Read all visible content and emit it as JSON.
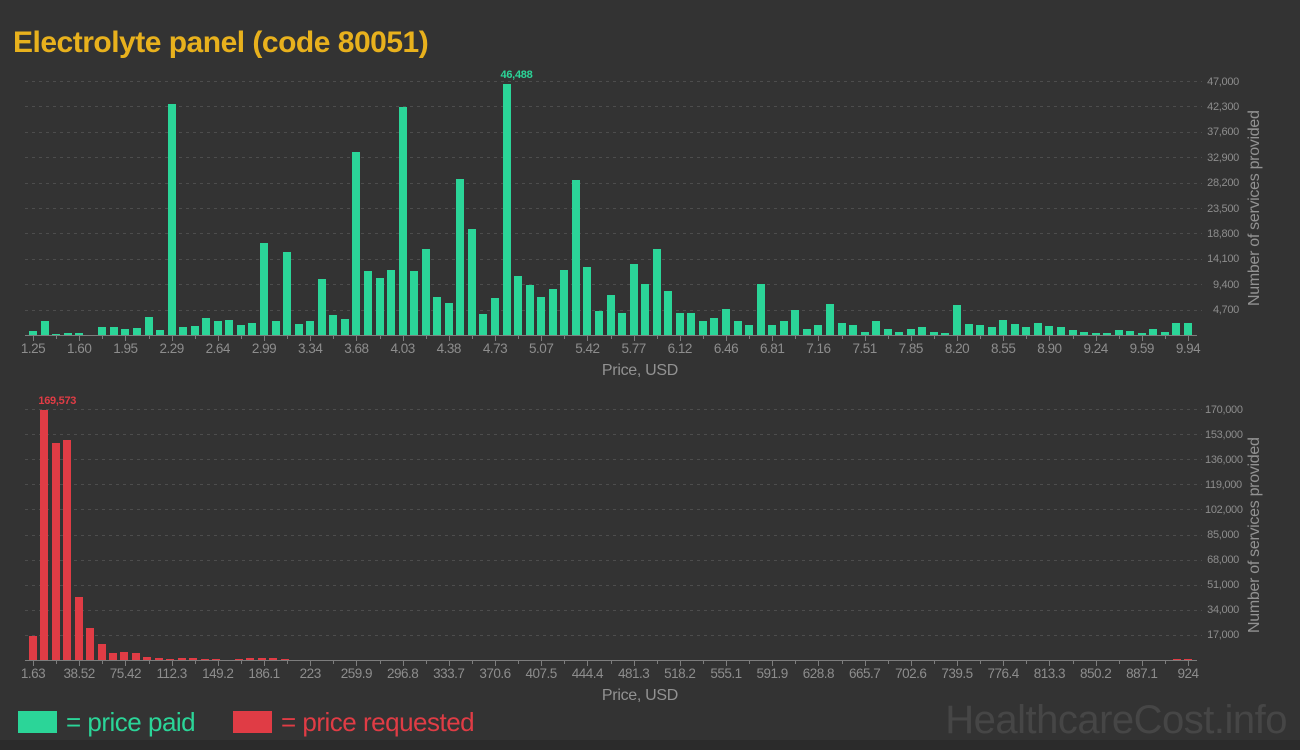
{
  "page": {
    "title": "Electrolyte panel (code 80051)",
    "watermark": "HealthcareCost.info",
    "background_color": "#333333",
    "title_color": "#e8b11d"
  },
  "legend": {
    "items": [
      {
        "label": "= price paid",
        "color": "#2bd598"
      },
      {
        "label": "= price requested",
        "color": "#e03c45"
      }
    ]
  },
  "chart_data": [
    {
      "type": "bar",
      "name": "price paid histogram",
      "color": "#2bd598",
      "xlabel": "Price, USD",
      "ylabel": "Number of services provided",
      "ylim": [
        0,
        47000
      ],
      "grid": true,
      "legend_position": "bottom-left",
      "y_tick_labels": [
        "4,700",
        "9,400",
        "14,100",
        "18,800",
        "23,500",
        "28,200",
        "32,900",
        "37,600",
        "42,300",
        "47,000"
      ],
      "x_tick_labels": [
        "1.25",
        "1.60",
        "1.95",
        "2.29",
        "2.64",
        "2.99",
        "3.34",
        "3.68",
        "4.03",
        "4.38",
        "4.73",
        "5.07",
        "5.42",
        "5.77",
        "6.12",
        "6.46",
        "6.81",
        "7.16",
        "7.51",
        "7.85",
        "8.20",
        "8.55",
        "8.90",
        "9.24",
        "9.59",
        "9.94"
      ],
      "peak_label": "46,488",
      "values": [
        700,
        2500,
        150,
        300,
        300,
        0,
        1500,
        1500,
        1200,
        1300,
        3400,
        900,
        42800,
        1500,
        1600,
        3100,
        2500,
        2800,
        1900,
        2200,
        17100,
        2500,
        15400,
        2000,
        2500,
        10300,
        3700,
        2900,
        33900,
        11800,
        10500,
        12100,
        42100,
        11800,
        16000,
        7000,
        6000,
        28900,
        19600,
        3900,
        6800,
        46488,
        10900,
        9200,
        7100,
        8600,
        12100,
        28700,
        12500,
        4400,
        7400,
        4000,
        13100,
        9400,
        16000,
        8200,
        4000,
        4000,
        2600,
        3100,
        4900,
        2500,
        1800,
        9500,
        1800,
        2500,
        4600,
        1200,
        1800,
        5700,
        2200,
        1800,
        600,
        2500,
        1200,
        600,
        1200,
        1500,
        600,
        400,
        5500,
        2000,
        1800,
        1500,
        2700,
        2000,
        1400,
        2300,
        1700,
        1500,
        900,
        600,
        400,
        300,
        900,
        700,
        400,
        1200,
        600,
        2300,
        2300
      ]
    },
    {
      "type": "bar",
      "name": "price requested histogram",
      "color": "#e03c45",
      "xlabel": "Price, USD",
      "ylabel": "Number of services provided",
      "ylim": [
        0,
        170000
      ],
      "grid": true,
      "legend_position": "bottom-left",
      "y_tick_labels": [
        "17,000",
        "34,000",
        "51,000",
        "68,000",
        "85,000",
        "102,000",
        "119,000",
        "136,000",
        "153,000",
        "170,000"
      ],
      "x_tick_labels": [
        "1.63",
        "38.52",
        "75.42",
        "112.3",
        "149.2",
        "186.1",
        "223",
        "259.9",
        "296.8",
        "333.7",
        "370.6",
        "407.5",
        "444.4",
        "481.3",
        "518.2",
        "555.1",
        "591.9",
        "628.8",
        "665.7",
        "702.6",
        "739.5",
        "776.4",
        "813.3",
        "850.2",
        "887.1",
        "924"
      ],
      "peak_label": "169,573",
      "values": [
        16500,
        169573,
        147000,
        149000,
        43000,
        22000,
        10800,
        4500,
        5600,
        4500,
        1800,
        1100,
        700,
        1500,
        1500,
        400,
        200,
        150,
        300,
        1300,
        1400,
        1300,
        200,
        100,
        100,
        80,
        0,
        0,
        60,
        0,
        0,
        0,
        50,
        0,
        0,
        0,
        0,
        40,
        0,
        0,
        0,
        0,
        0,
        50,
        0,
        0,
        0,
        0,
        0,
        0,
        0,
        0,
        0,
        0,
        30,
        0,
        0,
        0,
        0,
        0,
        0,
        0,
        0,
        30,
        0,
        0,
        0,
        0,
        0,
        0,
        0,
        0,
        0,
        0,
        20,
        0,
        0,
        0,
        0,
        0,
        0,
        0,
        0,
        0,
        0,
        20,
        0,
        0,
        0,
        0,
        0,
        0,
        0,
        0,
        0,
        0,
        0,
        0,
        0,
        0,
        300,
        1000
      ]
    }
  ]
}
